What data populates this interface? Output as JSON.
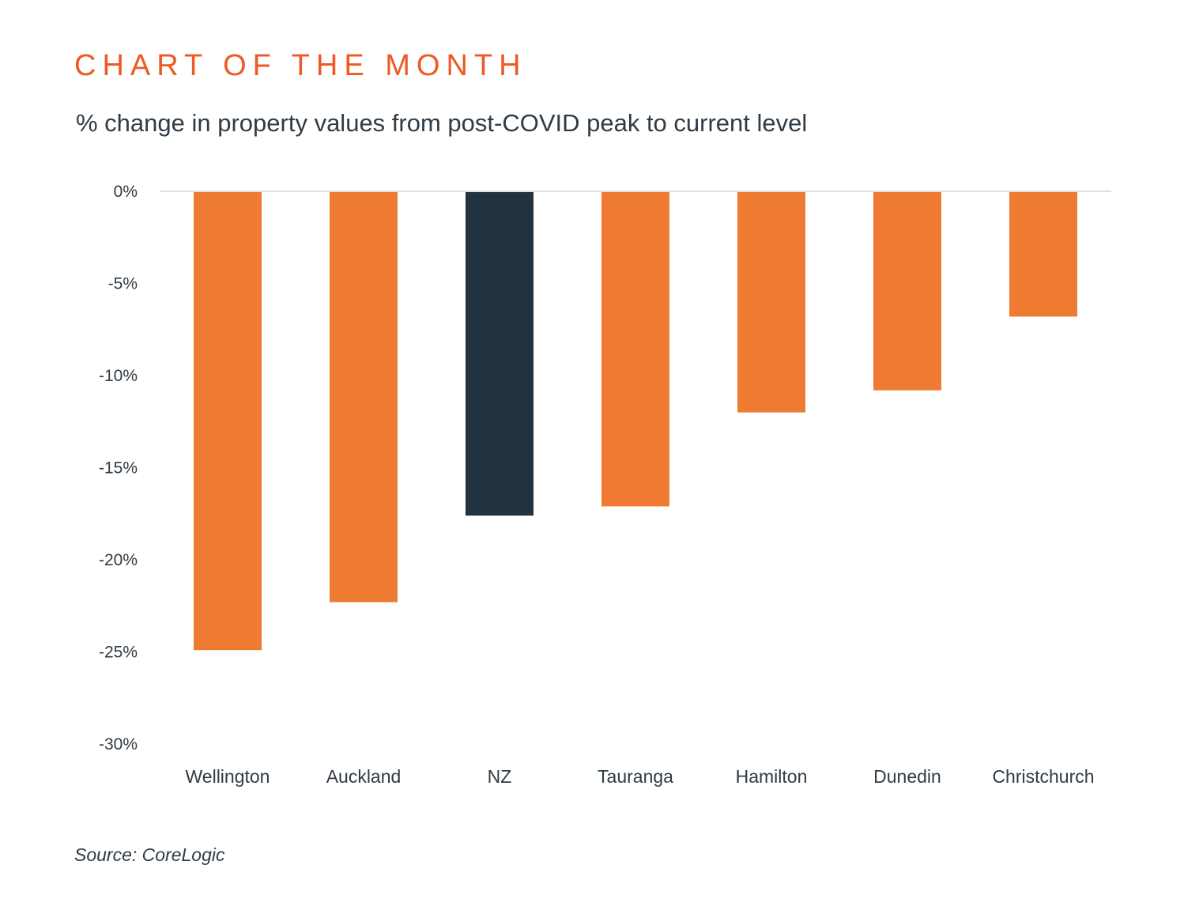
{
  "header": {
    "kicker": "CHART OF THE MONTH",
    "subtitle": "% change in property values from post-COVID peak to current level"
  },
  "footer": {
    "source": "Source: CoreLogic"
  },
  "colors": {
    "city_bar": "#ef7b32",
    "national_bar": "#22323e",
    "baseline": "#d5e0e8",
    "text": "#2f3b45",
    "accent": "#ef5a24"
  },
  "chart_data": {
    "type": "bar",
    "title": "% change in property values from post-COVID peak to current level",
    "xlabel": "",
    "ylabel": "",
    "categories": [
      "Wellington",
      "Auckland",
      "NZ",
      "Tauranga",
      "Hamilton",
      "Dunedin",
      "Christchurch"
    ],
    "values": [
      -24.9,
      -22.3,
      -17.6,
      -17.1,
      -12.0,
      -10.8,
      -6.8
    ],
    "highlight": [
      "NZ"
    ],
    "ylim": [
      -30,
      0
    ],
    "yticks": [
      0,
      -5,
      -10,
      -15,
      -20,
      -25,
      -30
    ],
    "ytick_labels": [
      "0%",
      "-5%",
      "-10%",
      "-15%",
      "-20%",
      "-25%",
      "-30%"
    ],
    "grid": false,
    "legend": "none"
  }
}
